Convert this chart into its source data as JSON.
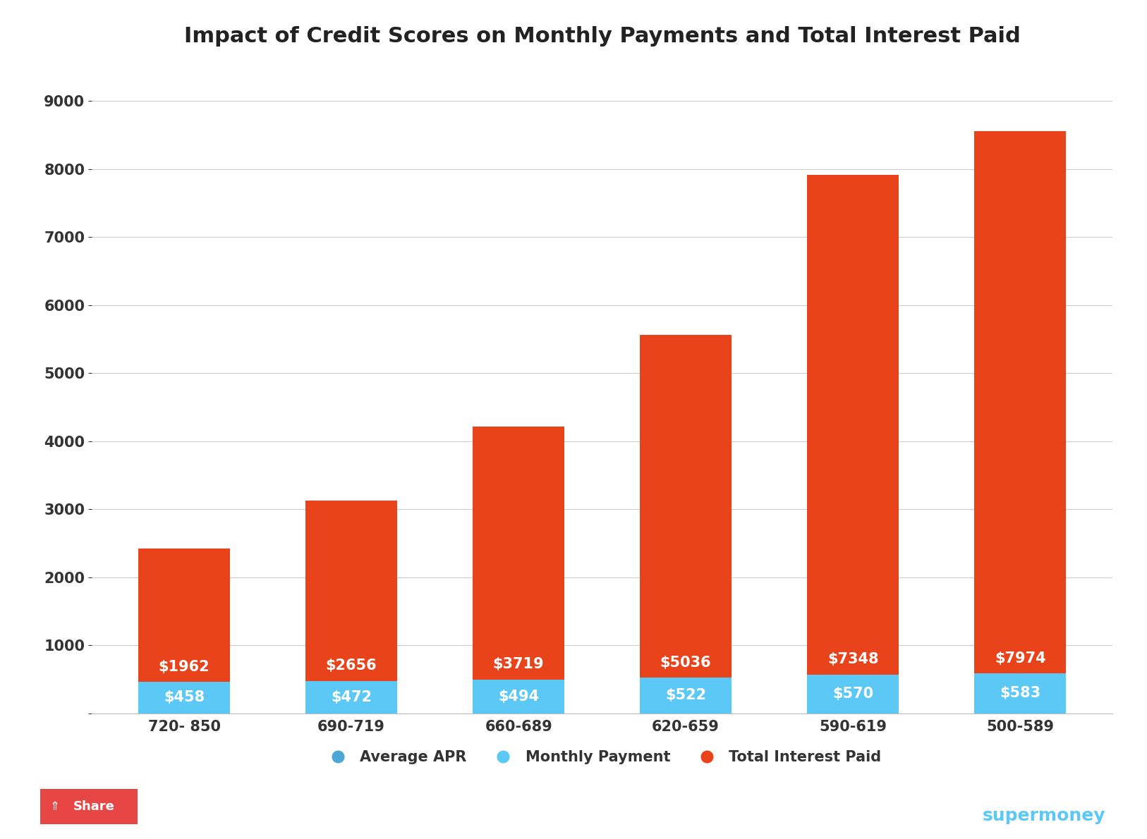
{
  "title": "Impact of Credit Scores on Monthly Payments and Total Interest Paid",
  "categories": [
    "720- 850",
    "690-719",
    "660-689",
    "620-659",
    "590-619",
    "500-589"
  ],
  "monthly_payment": [
    458,
    472,
    494,
    522,
    570,
    583
  ],
  "total_interest": [
    1962,
    2656,
    3719,
    5036,
    7348,
    7974
  ],
  "monthly_payment_color": "#5bc8f5",
  "total_interest_color": "#e8431a",
  "avg_apr_color": "#4da6d6",
  "background_color": "#ffffff",
  "grid_color": "#cccccc",
  "title_fontsize": 22,
  "label_fontsize": 15,
  "tick_fontsize": 15,
  "bar_label_fontsize": 15,
  "bar_label_color": "#ffffff",
  "ylim": [
    0,
    9500
  ],
  "yticks": [
    0,
    1000,
    2000,
    3000,
    4000,
    5000,
    6000,
    7000,
    8000,
    9000
  ],
  "legend_labels": [
    "Average APR",
    "Monthly Payment",
    "Total Interest Paid"
  ],
  "share_button_color": "#e84545",
  "supermoney_color": "#5bc8f5",
  "bar_width": 0.55
}
